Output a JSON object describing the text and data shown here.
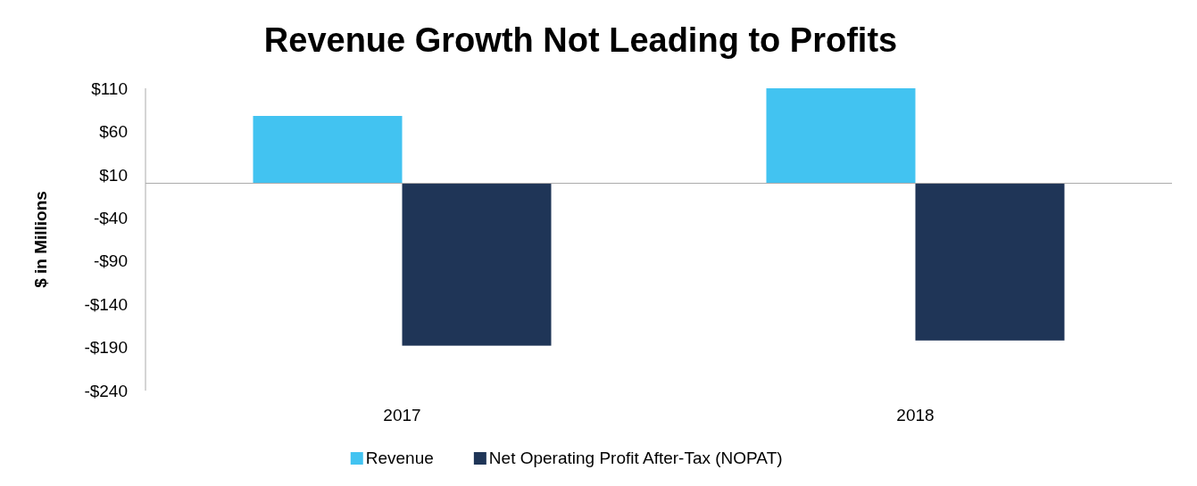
{
  "chart_data": {
    "type": "bar",
    "title": "Revenue Growth Not Leading to Profits",
    "ylabel": "$ in Millions",
    "categories": [
      "2017",
      "2018"
    ],
    "series": [
      {
        "name": "Revenue",
        "color": "#42c3f1",
        "values": [
          78,
          110
        ]
      },
      {
        "name": "Net Operating Profit After-Tax (NOPAT)",
        "color": "#1f3557",
        "values": [
          -188,
          -182
        ]
      }
    ],
    "ylim": [
      -240,
      110
    ],
    "yticks": [
      {
        "value": 110,
        "label": "$110"
      },
      {
        "value": 60,
        "label": "$60"
      },
      {
        "value": 10,
        "label": "$10"
      },
      {
        "value": -40,
        "label": "-$40"
      },
      {
        "value": -90,
        "label": "-$90"
      },
      {
        "value": -140,
        "label": "-$140"
      },
      {
        "value": -190,
        "label": "-$190"
      },
      {
        "value": -240,
        "label": "-$240"
      }
    ],
    "grid": false,
    "legend": "bottom"
  }
}
